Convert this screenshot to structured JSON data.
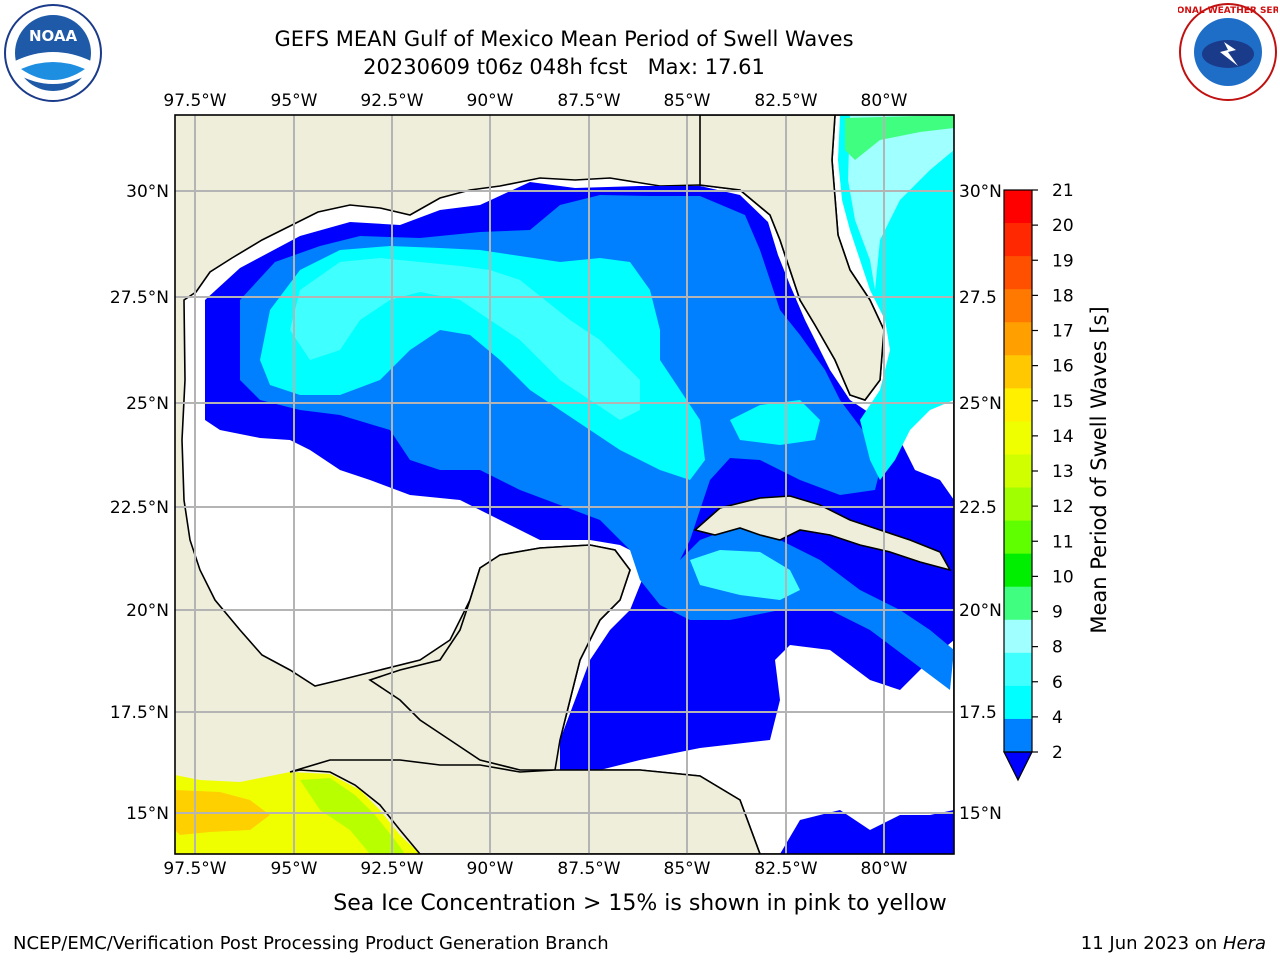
{
  "header": {
    "title_line1": "GEFS MEAN Gulf of Mexico Mean Period of Swell Waves",
    "title_line2": "20230609 t06z 048h fcst   Max: 17.61"
  },
  "logos": {
    "left": "noaa-logo",
    "right": "nws-logo",
    "left_text": "NOAA",
    "right_text": "NATIONAL WEATHER SERVICE"
  },
  "map": {
    "lon_labels": [
      "97.5°W",
      "95°W",
      "92.5°W",
      "90°W",
      "87.5°W",
      "85°W",
      "82.5°W",
      "80°W"
    ],
    "lat_labels_left": [
      "30°N",
      "27.5°N",
      "25°N",
      "22.5°N",
      "20°N",
      "17.5°N",
      "15°N"
    ],
    "lat_labels_right": [
      "30°N",
      "27.5",
      "25°N",
      "22.5",
      "20°N",
      "17.5",
      "15°N"
    ],
    "colors": {
      "land": "#efeedb",
      "water_blue": "#0000ff",
      "water_med": "#0080ff",
      "water_cyan": "#00ffff",
      "water_lcyan": "#40ffff",
      "water_green": "#40ff80",
      "water_yellow": "#f0ff00",
      "water_orange": "#ffc000",
      "grid": "#b4b4b4"
    }
  },
  "colorbar": {
    "label": "Mean Period of Swell Waves [s]",
    "ticks": [
      "21",
      "20",
      "19",
      "18",
      "17",
      "16",
      "15",
      "14",
      "13",
      "12",
      "11",
      "10",
      "9",
      "8",
      "6",
      "4",
      "2"
    ],
    "colors": [
      "#ff0000",
      "#ff2800",
      "#ff5000",
      "#ff7800",
      "#ffa000",
      "#ffc800",
      "#fff000",
      "#f0ff00",
      "#d0ff00",
      "#a0ff00",
      "#60ff00",
      "#00ee00",
      "#40ff80",
      "#a0ffff",
      "#40ffff",
      "#00ffff",
      "#0080ff"
    ],
    "extend_color": "#0000ff"
  },
  "note": "Sea Ice Concentration > 15% is shown in pink to yellow",
  "footer": {
    "left": "NCEP/EMC/Verification Post Processing Product Generation Branch",
    "right_prefix": "11 Jun 2023 on ",
    "right_host": "Hera"
  }
}
